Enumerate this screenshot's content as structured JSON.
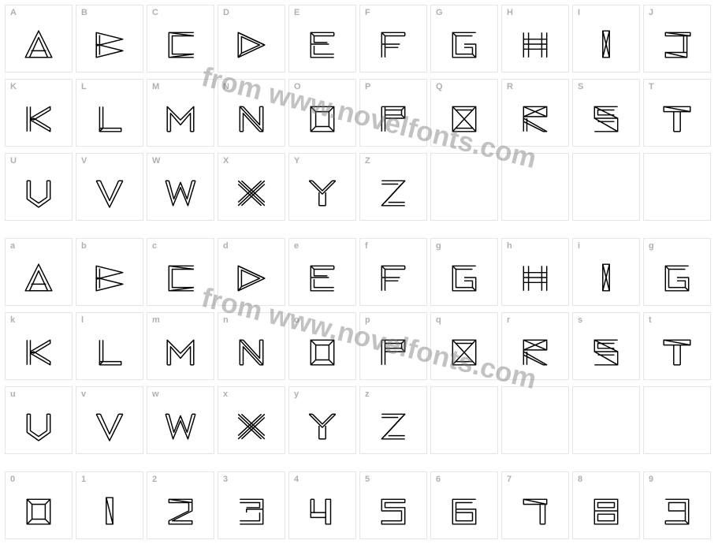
{
  "watermark_text": "from www.novelfonts.com",
  "stroke_color": "#000000",
  "stroke_width": 1.4,
  "cell_bg": "#ffffff",
  "cell_border": "#e5e5e5",
  "label_color": "#b0b0b0",
  "glyph_size": 42,
  "rows": [
    {
      "labels": [
        "A",
        "B",
        "C",
        "D",
        "E",
        "F",
        "G",
        "H",
        "I",
        "J"
      ],
      "glyphs": [
        "A",
        "B",
        "C",
        "D",
        "E",
        "F",
        "G",
        "H",
        "I",
        "J"
      ]
    },
    {
      "labels": [
        "K",
        "L",
        "M",
        "N",
        "O",
        "P",
        "Q",
        "R",
        "S",
        "T"
      ],
      "glyphs": [
        "K",
        "L",
        "M",
        "N",
        "O",
        "P",
        "Q",
        "R",
        "S",
        "T"
      ]
    },
    {
      "labels": [
        "U",
        "V",
        "W",
        "X",
        "Y",
        "Z",
        "",
        "",
        "",
        ""
      ],
      "glyphs": [
        "U",
        "V",
        "W",
        "X",
        "Y",
        "Z",
        "",
        "",
        "",
        ""
      ]
    },
    {
      "labels": [
        "a",
        "b",
        "c",
        "d",
        "e",
        "f",
        "g",
        "h",
        "i",
        "g"
      ],
      "glyphs": [
        "A",
        "B",
        "C",
        "D",
        "E",
        "F",
        "G",
        "H",
        "I",
        "G"
      ]
    },
    {
      "labels": [
        "k",
        "l",
        "m",
        "n",
        "o",
        "p",
        "q",
        "r",
        "s",
        "t"
      ],
      "glyphs": [
        "K",
        "L",
        "M",
        "N",
        "O",
        "P",
        "Q",
        "R",
        "S",
        "T"
      ]
    },
    {
      "labels": [
        "u",
        "v",
        "w",
        "x",
        "y",
        "z",
        "",
        "",
        "",
        ""
      ],
      "glyphs": [
        "U",
        "V",
        "W",
        "X",
        "Y",
        "Z",
        "",
        "",
        "",
        ""
      ]
    },
    {
      "labels": [
        "0",
        "1",
        "2",
        "3",
        "4",
        "5",
        "6",
        "7",
        "8",
        "9"
      ],
      "glyphs": [
        "0",
        "1",
        "2",
        "3",
        "4",
        "5",
        "6",
        "7",
        "8",
        "9"
      ]
    }
  ]
}
